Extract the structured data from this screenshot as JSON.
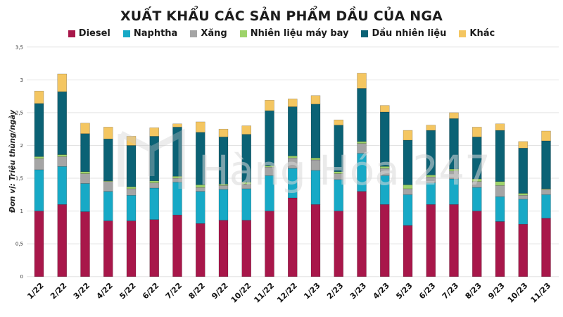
{
  "chart_data": {
    "type": "bar",
    "stacked": true,
    "title": "XUẤT KHẨU CÁC SẢN PHẨM DẦU CỦA NGA",
    "ylabel": "Đơn vị: Triệu thùng/ngày",
    "xlabel": "",
    "ylim": [
      0,
      3.5
    ],
    "yticks": [
      "0",
      "0,5",
      "1",
      "1,5",
      "2",
      "2,5",
      "3",
      "3,5"
    ],
    "ytick_values": [
      0,
      0.5,
      1,
      1.5,
      2,
      2.5,
      3,
      3.5
    ],
    "grid": true,
    "legend_position": "top-center",
    "watermark": "Hàng Hóa 247",
    "categories": [
      "1/22",
      "2/22",
      "3/22",
      "4/22",
      "5/22",
      "6/22",
      "7/22",
      "8/22",
      "9/22",
      "10/22",
      "11/22",
      "12/22",
      "1/23",
      "2/23",
      "3/23",
      "4/23",
      "5/23",
      "6/23",
      "7/23",
      "8/23",
      "9/23",
      "10/23",
      "11/23"
    ],
    "series": [
      {
        "name": "Diesel",
        "color": "#a8174a",
        "values": [
          1.0,
          1.1,
          0.99,
          0.85,
          0.85,
          0.87,
          0.94,
          0.81,
          0.86,
          0.86,
          1.0,
          1.2,
          1.1,
          1.0,
          1.3,
          1.1,
          0.78,
          1.1,
          1.1,
          1.0,
          0.84,
          0.8,
          0.89
        ]
      },
      {
        "name": "Naphtha",
        "color": "#17a9c6",
        "values": [
          0.63,
          0.58,
          0.43,
          0.45,
          0.39,
          0.48,
          0.5,
          0.49,
          0.47,
          0.48,
          0.54,
          0.45,
          0.52,
          0.48,
          0.58,
          0.44,
          0.47,
          0.33,
          0.39,
          0.36,
          0.38,
          0.38,
          0.36
        ]
      },
      {
        "name": "Xăng",
        "color": "#a5a5a5",
        "values": [
          0.17,
          0.15,
          0.15,
          0.15,
          0.1,
          0.08,
          0.06,
          0.06,
          0.06,
          0.07,
          0.13,
          0.16,
          0.16,
          0.09,
          0.15,
          0.11,
          0.09,
          0.09,
          0.12,
          0.09,
          0.17,
          0.06,
          0.08
        ]
      },
      {
        "name": "Nhiên liệu máy bay",
        "color": "#9ed36a",
        "values": [
          0.03,
          0.03,
          0.03,
          0.01,
          0.03,
          0.03,
          0.03,
          0.04,
          0.02,
          0.03,
          0.02,
          0.03,
          0.03,
          0.03,
          0.03,
          0.03,
          0.06,
          0.03,
          0.03,
          0.04,
          0.06,
          0.03,
          0.01
        ]
      },
      {
        "name": "Dầu nhiên liệu",
        "color": "#0b6275",
        "values": [
          0.81,
          0.96,
          0.58,
          0.64,
          0.63,
          0.68,
          0.75,
          0.8,
          0.72,
          0.73,
          0.84,
          0.75,
          0.82,
          0.71,
          0.81,
          0.83,
          0.68,
          0.68,
          0.77,
          0.64,
          0.78,
          0.69,
          0.73
        ]
      },
      {
        "name": "Khác",
        "color": "#f4c661",
        "values": [
          0.19,
          0.27,
          0.16,
          0.18,
          0.14,
          0.13,
          0.05,
          0.16,
          0.12,
          0.13,
          0.16,
          0.12,
          0.13,
          0.08,
          0.23,
          0.1,
          0.15,
          0.08,
          0.09,
          0.15,
          0.1,
          0.1,
          0.15
        ]
      }
    ]
  }
}
